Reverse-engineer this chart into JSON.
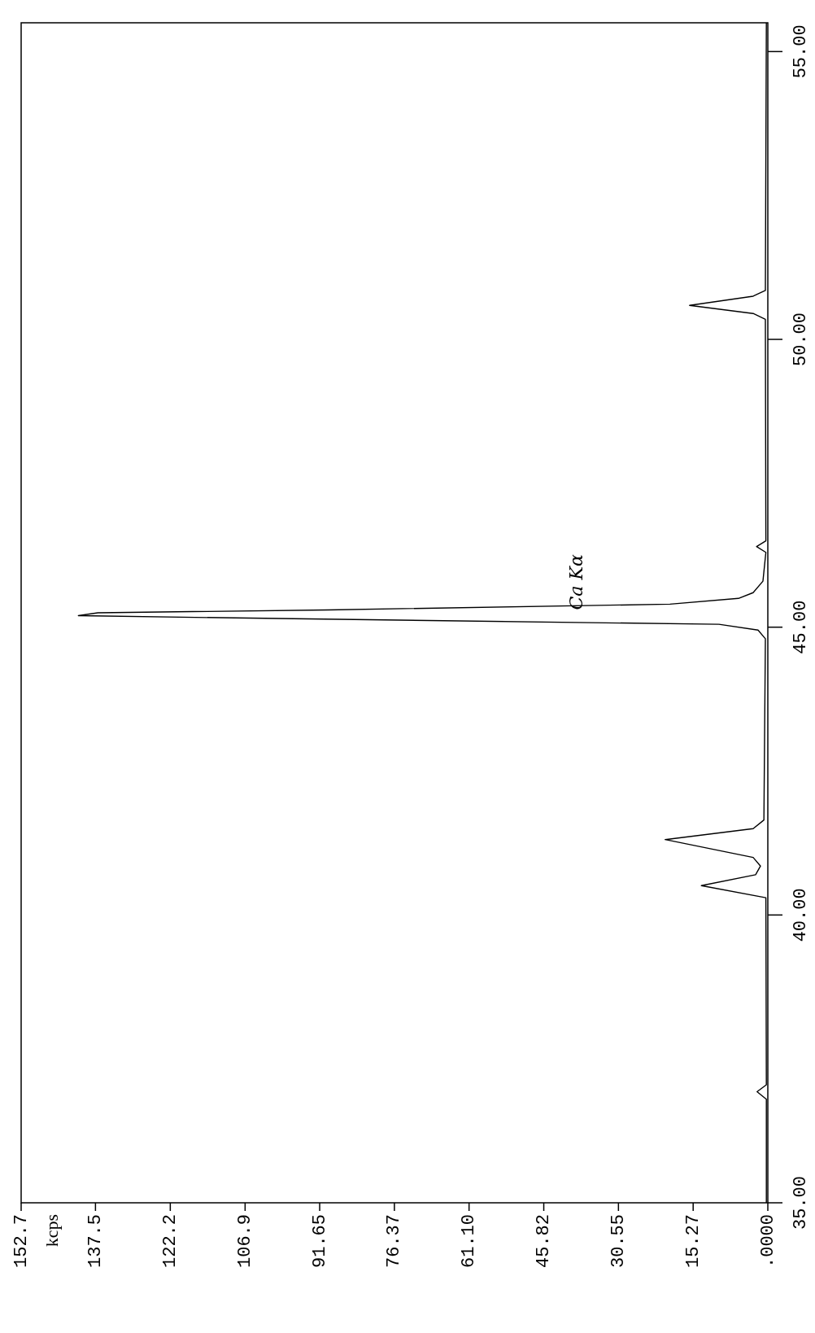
{
  "chart_data": {
    "type": "line",
    "annotations": [
      "Ca Kα",
      "kcps"
    ],
    "series": [
      {
        "color": "#000000",
        "x": [
          0.3,
          0.3,
          2.2,
          0.3,
          0.4,
          13.6,
          2.5,
          1.5,
          3,
          21,
          3,
          0.8,
          0.5,
          2,
          10,
          100,
          141,
          137,
          90,
          20,
          6,
          3,
          1,
          0.4,
          2.3,
          0.4,
          0.5,
          3,
          16,
          3,
          0.5,
          0.3
        ],
        "values": [
          35,
          36.8,
          36.93,
          37.05,
          40.3,
          40.51,
          40.7,
          40.85,
          41.0,
          41.31,
          41.5,
          41.65,
          44.8,
          44.95,
          45.05,
          45.15,
          45.2,
          45.25,
          45.3,
          45.4,
          45.5,
          45.6,
          45.8,
          46.3,
          46.4,
          46.5,
          50.35,
          50.45,
          50.59,
          50.75,
          50.85,
          55.5
        ]
      }
    ],
    "ylim": [
      35,
      55.5
    ],
    "yticks": [
      {
        "value": 35,
        "label": "35.00"
      },
      {
        "value": 40,
        "label": "40.00"
      },
      {
        "value": 45,
        "label": "45.00"
      },
      {
        "value": 50,
        "label": "50.00"
      },
      {
        "value": 55,
        "label": "55.00"
      }
    ],
    "xlim": [
      152.7,
      0
    ],
    "xticks": [
      152.7,
      137.5,
      122.2,
      106.9,
      91.65,
      76.37,
      {
        "value": 61.1,
        "label": "61.10"
      },
      45.82,
      30.55,
      15.27,
      {
        "value": 0,
        "label": ".0000"
      }
    ],
    "grid": false,
    "line_style": "solid"
  }
}
